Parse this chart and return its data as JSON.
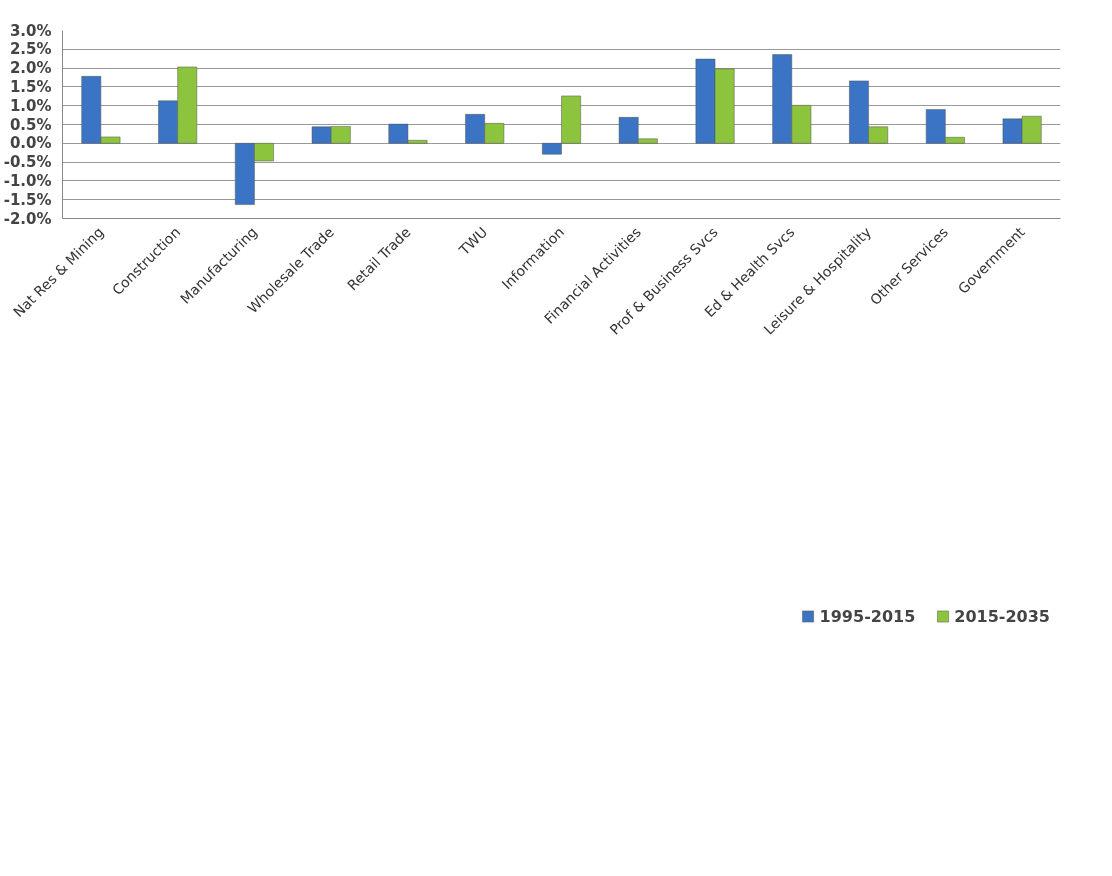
{
  "chart_data": {
    "type": "bar",
    "categories": [
      "Nat Res & Mining",
      "Construction",
      "Manufacturing",
      "Wholesale Trade",
      "Retail Trade",
      "TWU",
      "Information",
      "Financial Activities",
      "Prof & Business Svcs",
      "Ed & Health Svcs",
      "Leisure & Hospitality",
      "Other Services",
      "Government"
    ],
    "series": [
      {
        "name": "1995-2015",
        "color": "#3b74c4",
        "values": [
          1.78,
          1.13,
          -1.63,
          0.44,
          0.51,
          0.77,
          -0.29,
          0.69,
          2.24,
          2.36,
          1.66,
          0.9,
          0.65
        ]
      },
      {
        "name": "2015-2035",
        "color": "#8dc43d",
        "values": [
          0.17,
          2.03,
          -0.47,
          0.45,
          0.08,
          0.53,
          1.26,
          0.12,
          1.98,
          1.01,
          0.44,
          0.16,
          0.72
        ]
      }
    ],
    "ylim": [
      -2.0,
      3.0
    ],
    "yticks": [
      {
        "value": -2.0,
        "label": "-2.0%"
      },
      {
        "value": -1.5,
        "label": "-1.5%"
      },
      {
        "value": -1.0,
        "label": "-1.0%"
      },
      {
        "value": -0.5,
        "label": "-0.5%"
      },
      {
        "value": 0.0,
        "label": "0.0%"
      },
      {
        "value": 0.5,
        "label": "0.5%"
      },
      {
        "value": 1.0,
        "label": "1.0%"
      },
      {
        "value": 1.5,
        "label": "1.5%"
      },
      {
        "value": 2.0,
        "label": "2.0%"
      },
      {
        "value": 2.5,
        "label": "2.5%"
      },
      {
        "value": 3.0,
        "label": "3.0%"
      }
    ],
    "grid": "y",
    "legend": "bottom"
  }
}
